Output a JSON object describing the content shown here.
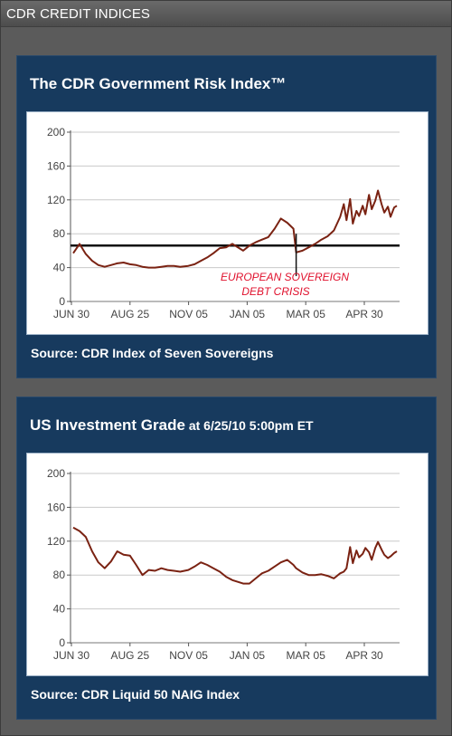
{
  "widget": {
    "title": "CDR CREDIT INDICES"
  },
  "panels": [
    {
      "title": "The CDR Government Risk Index™",
      "title_small": "",
      "source": "Source: CDR Index of Seven Sovereigns"
    },
    {
      "title": "US Investment Grade",
      "title_small": " at 6/25/10 5:00pm ET",
      "source": "Source: CDR Liquid 50 NAIG Index"
    }
  ],
  "chart_data": [
    {
      "type": "line",
      "title": "The CDR Government Risk Index™",
      "xlabel": "",
      "ylabel": "",
      "ylim": [
        0,
        200
      ],
      "yticks": [
        0,
        40,
        80,
        120,
        160,
        200
      ],
      "x_tick_labels": [
        "JUN 30",
        "AUG 25",
        "NOV 05",
        "JAN 05",
        "MAR 05",
        "APR 30"
      ],
      "grid": true,
      "line_color": "#7a2212",
      "x": [
        "2009-06-30",
        "2009-07-07",
        "2009-07-14",
        "2009-07-21",
        "2009-07-28",
        "2009-08-04",
        "2009-08-11",
        "2009-08-18",
        "2009-08-25",
        "2009-09-01",
        "2009-09-08",
        "2009-09-15",
        "2009-09-22",
        "2009-09-29",
        "2009-10-06",
        "2009-10-13",
        "2009-10-20",
        "2009-10-27",
        "2009-11-05",
        "2009-11-12",
        "2009-11-19",
        "2009-11-26",
        "2009-12-03",
        "2009-12-10",
        "2009-12-17",
        "2009-12-24",
        "2010-01-05",
        "2010-01-12",
        "2010-01-19",
        "2010-01-26",
        "2010-02-02",
        "2010-02-09",
        "2010-02-16",
        "2010-02-23",
        "2010-03-02",
        "2010-03-05",
        "2010-03-12",
        "2010-03-19",
        "2010-03-26",
        "2010-04-02",
        "2010-04-09",
        "2010-04-16",
        "2010-04-23",
        "2010-04-27",
        "2010-04-30",
        "2010-05-04",
        "2010-05-07",
        "2010-05-11",
        "2010-05-14",
        "2010-05-18",
        "2010-05-21",
        "2010-05-25",
        "2010-05-28",
        "2010-06-01",
        "2010-06-04",
        "2010-06-08",
        "2010-06-11",
        "2010-06-15",
        "2010-06-18",
        "2010-06-22",
        "2010-06-25"
      ],
      "series": [
        {
          "values": [
            57,
            68,
            56,
            48,
            43,
            41,
            43,
            45,
            46,
            44,
            43,
            41,
            40,
            40,
            41,
            42,
            42,
            41,
            42,
            44,
            48,
            52,
            57,
            63,
            64,
            68,
            60,
            66,
            70,
            73,
            76,
            86,
            98,
            93,
            86,
            58,
            60,
            64,
            68,
            73,
            77,
            84,
            100,
            115,
            96,
            121,
            92,
            107,
            101,
            113,
            103,
            126,
            109,
            119,
            131,
            115,
            105,
            112,
            100,
            111,
            113
          ]
        }
      ],
      "reference_line": {
        "value": 66
      },
      "annotation": {
        "x": "2010-03-05",
        "lines": [
          "EUROPEAN SOVEREIGN",
          "DEBT CRISIS"
        ]
      }
    },
    {
      "type": "line",
      "title": "US Investment Grade at 6/25/10 5:00pm ET",
      "xlabel": "",
      "ylabel": "",
      "ylim": [
        0,
        200
      ],
      "yticks": [
        0,
        40,
        80,
        120,
        160,
        200
      ],
      "x_tick_labels": [
        "JUN 30",
        "AUG 25",
        "NOV 05",
        "JAN 05",
        "MAR 05",
        "APR 30"
      ],
      "grid": true,
      "line_color": "#7a2212",
      "x": [
        "2009-06-30",
        "2009-07-07",
        "2009-07-14",
        "2009-07-21",
        "2009-07-28",
        "2009-08-04",
        "2009-08-11",
        "2009-08-18",
        "2009-08-25",
        "2009-09-01",
        "2009-09-08",
        "2009-09-15",
        "2009-09-22",
        "2009-09-29",
        "2009-10-06",
        "2009-10-13",
        "2009-10-20",
        "2009-10-27",
        "2009-11-05",
        "2009-11-12",
        "2009-11-19",
        "2009-11-26",
        "2009-12-03",
        "2009-12-10",
        "2009-12-17",
        "2009-12-24",
        "2010-01-05",
        "2010-01-12",
        "2010-01-19",
        "2010-01-26",
        "2010-02-02",
        "2010-02-09",
        "2010-02-16",
        "2010-02-23",
        "2010-03-02",
        "2010-03-05",
        "2010-03-12",
        "2010-03-19",
        "2010-03-26",
        "2010-04-02",
        "2010-04-09",
        "2010-04-16",
        "2010-04-23",
        "2010-04-27",
        "2010-04-30",
        "2010-05-04",
        "2010-05-07",
        "2010-05-11",
        "2010-05-14",
        "2010-05-18",
        "2010-05-21",
        "2010-05-25",
        "2010-05-28",
        "2010-06-01",
        "2010-06-04",
        "2010-06-08",
        "2010-06-11",
        "2010-06-15",
        "2010-06-18",
        "2010-06-22",
        "2010-06-25"
      ],
      "series": [
        {
          "values": [
            136,
            132,
            125,
            108,
            95,
            88,
            96,
            108,
            104,
            103,
            92,
            80,
            86,
            85,
            88,
            86,
            85,
            84,
            86,
            90,
            95,
            92,
            88,
            84,
            78,
            74,
            70,
            70,
            76,
            82,
            85,
            90,
            95,
            98,
            92,
            88,
            83,
            80,
            80,
            81,
            79,
            76,
            82,
            84,
            88,
            113,
            94,
            109,
            101,
            105,
            112,
            107,
            98,
            112,
            119,
            110,
            104,
            100,
            102,
            106,
            108
          ]
        }
      ]
    }
  ]
}
